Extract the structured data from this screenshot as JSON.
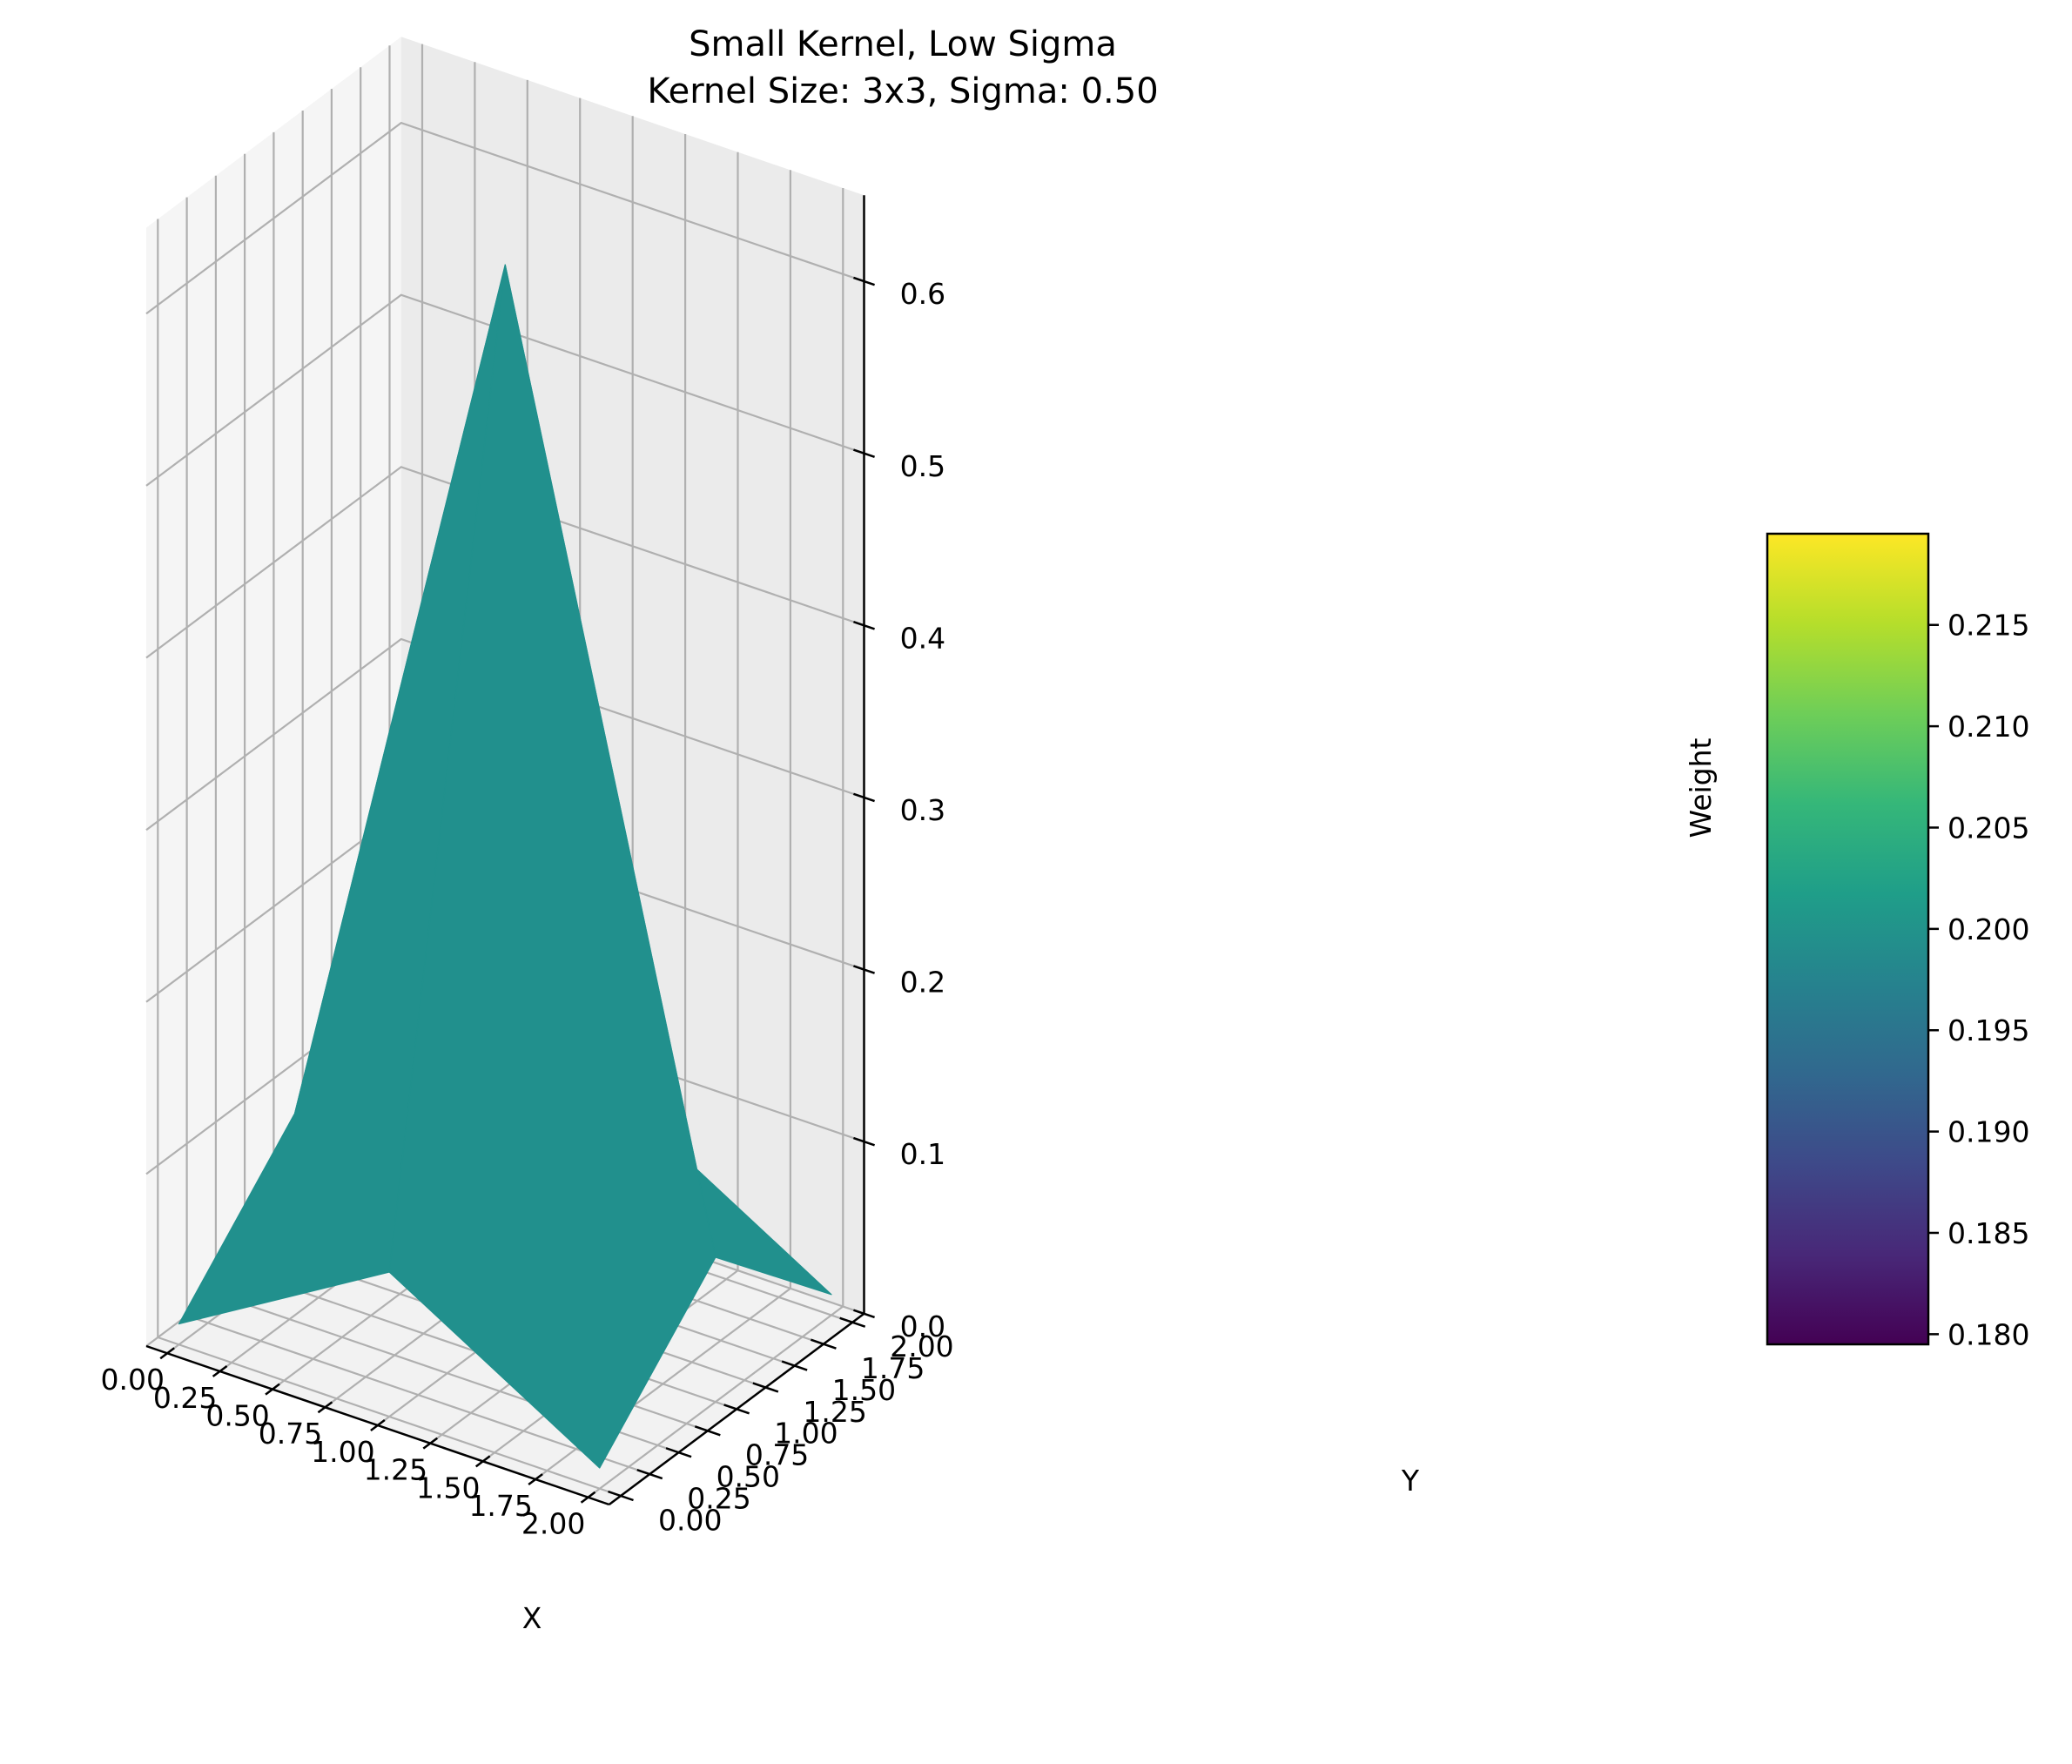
{
  "chart_data": {
    "type": "surface3d",
    "title": "Small Kernel, Low Sigma",
    "subtitle": "Kernel Size: 3x3, Sigma: 0.50",
    "xlabel": "X",
    "ylabel": "Y",
    "zlabel": "Weight",
    "x": [
      0,
      1,
      2
    ],
    "y": [
      0,
      1,
      2
    ],
    "z": [
      [
        0.012,
        0.084,
        0.012
      ],
      [
        0.084,
        0.619,
        0.084
      ],
      [
        0.012,
        0.084,
        0.012
      ]
    ],
    "xlim": [
      0,
      2
    ],
    "ylim": [
      0,
      2
    ],
    "zlim": [
      0,
      0.62
    ],
    "x_ticks": [
      "0.00",
      "0.25",
      "0.50",
      "0.75",
      "1.00",
      "1.25",
      "1.50",
      "1.75",
      "2.00"
    ],
    "y_ticks": [
      "0.00",
      "0.25",
      "0.50",
      "0.75",
      "1.00",
      "1.25",
      "1.50",
      "1.75",
      "2.00"
    ],
    "z_ticks": [
      "0.0",
      "0.1",
      "0.2",
      "0.3",
      "0.4",
      "0.5",
      "0.6"
    ],
    "surface_color": "#21908d",
    "colorbar": {
      "colormap": "viridis",
      "range": [
        0.1795,
        0.2195
      ],
      "ticks": [
        "0.180",
        "0.185",
        "0.190",
        "0.195",
        "0.200",
        "0.205",
        "0.210",
        "0.215"
      ],
      "colors": [
        "#440154",
        "#482878",
        "#3e4989",
        "#31688e",
        "#26828e",
        "#1f9e89",
        "#35b779",
        "#6ece58",
        "#b5de2b",
        "#fde725"
      ]
    },
    "grid": true
  }
}
